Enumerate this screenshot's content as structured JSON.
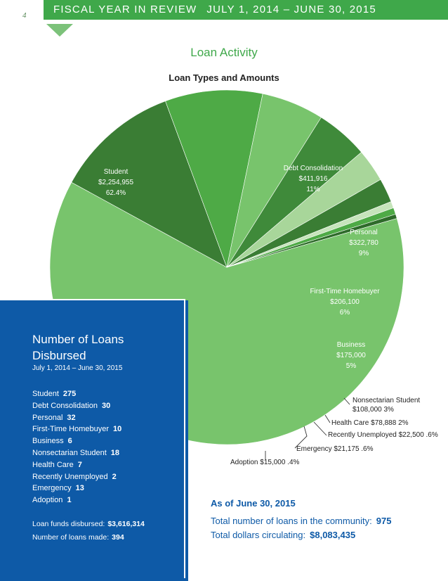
{
  "page_number": "4",
  "header": {
    "left": "FISCAL YEAR IN REVIEW",
    "right": "JULY 1, 2014 – JUNE 30, 2015"
  },
  "section_title": "Loan Activity",
  "chart_data": {
    "type": "pie",
    "title": "Loan Types and Amounts",
    "slices": [
      {
        "label": "Student",
        "amount": "$2,254,955",
        "pct": "62.4%",
        "value": 62.4,
        "color": "#78c46c"
      },
      {
        "label": "Debt Consolidation",
        "amount": "$411,916",
        "pct": "11%",
        "value": 11.4,
        "color": "#3a7d34"
      },
      {
        "label": "Personal",
        "amount": "$322,780",
        "pct": "9%",
        "value": 8.9,
        "color": "#4eaa46"
      },
      {
        "label": "First-Time Homebuyer",
        "amount": "$206,100",
        "pct": "6%",
        "value": 5.7,
        "color": "#78c46c"
      },
      {
        "label": "Business",
        "amount": "$175,000",
        "pct": "5%",
        "value": 4.8,
        "color": "#3f8a3a"
      },
      {
        "label": "Nonsectarian Student",
        "amount": "$108,000",
        "pct": "3%",
        "value": 3.0,
        "color": "#a8d69a"
      },
      {
        "label": "Health Care",
        "amount": "$78,888",
        "pct": "2%",
        "value": 2.2,
        "color": "#3a7d34"
      },
      {
        "label": "Recently Unemployed",
        "amount": "$22,500",
        "pct": ".6%",
        "value": 0.6,
        "color": "#c6e4bb"
      },
      {
        "label": "Emergency",
        "amount": "$21,175",
        "pct": ".6%",
        "value": 0.6,
        "color": "#4eaa46"
      },
      {
        "label": "Adoption",
        "amount": "$15,000",
        "pct": ".4%",
        "value": 0.4,
        "color": "#2e6b2a"
      }
    ]
  },
  "loans_panel": {
    "title": "Number of Loans Disbursed",
    "subtitle": "July 1, 2014 – June 30, 2015",
    "items": [
      {
        "label": "Student",
        "count": "275"
      },
      {
        "label": "Debt Consolidation",
        "count": "30"
      },
      {
        "label": "Personal",
        "count": "32"
      },
      {
        "label": "First-Time Homebuyer",
        "count": "10"
      },
      {
        "label": "Business",
        "count": "6"
      },
      {
        "label": "Nonsectarian Student",
        "count": "18"
      },
      {
        "label": "Health Care",
        "count": "7"
      },
      {
        "label": "Recently Unemployed",
        "count": "2"
      },
      {
        "label": "Emergency",
        "count": "13"
      },
      {
        "label": "Adoption",
        "count": "1"
      }
    ],
    "funds_label": "Loan funds disbursed:",
    "funds_value": "$3,616,314",
    "made_label": "Number of loans made:",
    "made_value": "394"
  },
  "summary": {
    "as_of": "As of June 30, 2015",
    "loans_label": "Total number of loans in the community:",
    "loans_value": "975",
    "dollars_label": "Total dollars circulating:",
    "dollars_value": "$8,083,435"
  }
}
